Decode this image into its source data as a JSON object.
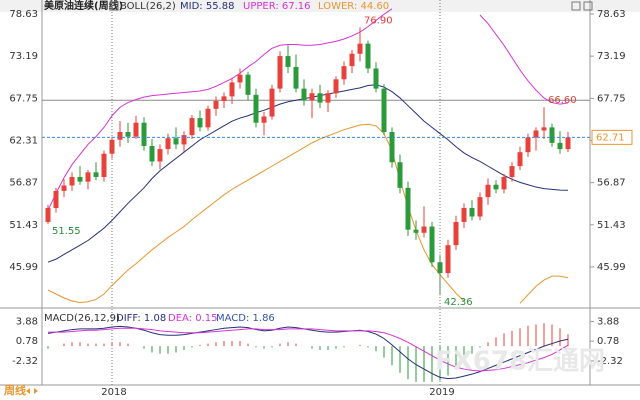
{
  "header": {
    "title": "美原油连续(周线)"
  },
  "chart_data": [
    {
      "type": "candlestick",
      "title": "BOLL(26,2)",
      "categories": [
        null,
        null,
        null,
        null,
        null,
        null,
        null,
        null,
        "2018",
        null,
        null,
        null,
        null,
        null,
        null,
        null,
        null,
        null,
        null,
        null,
        null,
        null,
        null,
        null,
        null,
        null,
        null,
        null,
        null,
        null,
        null,
        null,
        null,
        null,
        null,
        null,
        null,
        null,
        null,
        null,
        null,
        null,
        null,
        null,
        null,
        null,
        null,
        null,
        null,
        "2019",
        null,
        null,
        null,
        null,
        null,
        null,
        null,
        null,
        null,
        null,
        null,
        null,
        null,
        null,
        null,
        null
      ],
      "ohlc": [
        [
          51.8,
          54.0,
          51.55,
          53.6
        ],
        [
          53.6,
          56.2,
          53.0,
          55.8
        ],
        [
          55.8,
          57.3,
          55.0,
          56.5
        ],
        [
          56.5,
          58.2,
          55.8,
          57.6
        ],
        [
          57.6,
          59.0,
          56.6,
          57.0
        ],
        [
          57.0,
          58.5,
          56.0,
          58.2
        ],
        [
          58.2,
          59.5,
          57.2,
          57.6
        ],
        [
          57.6,
          61.0,
          57.0,
          60.6
        ],
        [
          60.6,
          62.8,
          60.0,
          62.4
        ],
        [
          62.4,
          64.8,
          61.5,
          63.4
        ],
        [
          63.4,
          64.6,
          62.0,
          62.8
        ],
        [
          62.8,
          65.5,
          62.5,
          64.6
        ],
        [
          64.6,
          65.3,
          61.0,
          61.6
        ],
        [
          61.6,
          62.5,
          59.0,
          59.6
        ],
        [
          59.6,
          61.8,
          58.6,
          61.2
        ],
        [
          61.2,
          63.2,
          60.5,
          62.6
        ],
        [
          62.6,
          64.0,
          61.2,
          61.8
        ],
        [
          61.8,
          63.5,
          60.8,
          63.0
        ],
        [
          63.0,
          65.6,
          62.5,
          65.2
        ],
        [
          65.2,
          66.2,
          63.5,
          64.0
        ],
        [
          64.0,
          66.8,
          63.6,
          66.4
        ],
        [
          66.4,
          68.0,
          65.5,
          67.4
        ],
        [
          67.4,
          68.5,
          66.5,
          68.0
        ],
        [
          68.0,
          70.4,
          67.0,
          69.8
        ],
        [
          69.8,
          71.6,
          69.0,
          70.8
        ],
        [
          70.8,
          71.2,
          67.5,
          68.2
        ],
        [
          68.2,
          69.0,
          64.0,
          64.6
        ],
        [
          64.6,
          66.0,
          63.0,
          65.4
        ],
        [
          65.4,
          69.5,
          65.0,
          69.0
        ],
        [
          69.0,
          73.8,
          68.5,
          73.2
        ],
        [
          73.2,
          74.6,
          71.0,
          71.8
        ],
        [
          71.8,
          73.4,
          68.5,
          69.0
        ],
        [
          69.0,
          70.2,
          66.8,
          67.5
        ],
        [
          67.5,
          69.0,
          65.2,
          68.4
        ],
        [
          68.4,
          69.5,
          66.5,
          67.2
        ],
        [
          67.2,
          68.8,
          66.0,
          68.4
        ],
        [
          68.4,
          70.6,
          67.8,
          70.2
        ],
        [
          70.2,
          72.5,
          69.5,
          71.9
        ],
        [
          71.9,
          74.0,
          71.0,
          73.5
        ],
        [
          73.5,
          76.9,
          72.5,
          74.8
        ],
        [
          74.8,
          75.2,
          71.0,
          71.6
        ],
        [
          71.6,
          72.4,
          68.5,
          69.0
        ],
        [
          69.0,
          69.6,
          63.0,
          63.4
        ],
        [
          63.4,
          64.0,
          58.8,
          59.5
        ],
        [
          59.5,
          60.5,
          55.5,
          56.2
        ],
        [
          56.2,
          57.0,
          50.0,
          50.8
        ],
        [
          50.8,
          52.0,
          49.5,
          50.4
        ],
        [
          50.4,
          53.8,
          49.8,
          51.2
        ],
        [
          51.2,
          51.8,
          46.0,
          46.6
        ],
        [
          46.6,
          47.6,
          42.36,
          45.2
        ],
        [
          45.2,
          49.5,
          44.6,
          48.8
        ],
        [
          48.8,
          52.6,
          48.2,
          51.8
        ],
        [
          51.8,
          54.2,
          51.0,
          53.6
        ],
        [
          53.6,
          54.6,
          52.0,
          52.5
        ],
        [
          52.5,
          55.6,
          52.0,
          55.0
        ],
        [
          55.0,
          57.4,
          54.0,
          56.6
        ],
        [
          56.6,
          57.2,
          55.5,
          56.0
        ],
        [
          56.0,
          58.0,
          55.5,
          57.6
        ],
        [
          57.6,
          59.5,
          57.0,
          59.0
        ],
        [
          59.0,
          61.5,
          58.5,
          60.8
        ],
        [
          60.8,
          63.2,
          60.2,
          62.7
        ],
        [
          62.7,
          64.0,
          61.0,
          63.6
        ],
        [
          63.6,
          66.6,
          62.5,
          64.0
        ],
        [
          64.0,
          64.5,
          61.5,
          62.0
        ],
        [
          62.0,
          63.5,
          60.6,
          61.2
        ],
        [
          61.2,
          63.4,
          60.8,
          62.71
        ]
      ],
      "up_color": "#e8403a",
      "down_color": "#2a9a3a",
      "series": [
        {
          "name": "MID",
          "legend": "MID: 55.88",
          "color": "#27307a",
          "values": [
            46.6,
            47.0,
            47.6,
            48.2,
            48.8,
            49.4,
            50.2,
            51.0,
            52.0,
            53.1,
            54.2,
            55.2,
            56.2,
            57.4,
            58.4,
            59.2,
            60.0,
            60.8,
            61.6,
            62.4,
            63.0,
            63.6,
            64.2,
            64.8,
            65.2,
            65.5,
            65.9,
            66.2,
            66.6,
            67.0,
            67.3,
            67.5,
            67.7,
            67.9,
            68.1,
            68.3,
            68.5,
            68.7,
            68.9,
            69.1,
            69.4,
            69.5,
            69.2,
            68.6,
            67.8,
            66.8,
            65.8,
            64.8,
            64.0,
            63.2,
            62.4,
            61.5,
            60.7,
            60.1,
            59.6,
            59.0,
            58.4,
            57.8,
            57.3,
            56.9,
            56.6,
            56.3,
            56.1,
            56.0,
            55.9,
            55.88
          ]
        },
        {
          "name": "UPPER",
          "legend": "UPPER: 67.16",
          "color": "#d634d6",
          "values": [
            53.3,
            55.5,
            57.5,
            59.2,
            60.5,
            61.8,
            62.8,
            64.0,
            65.5,
            66.6,
            67.2,
            67.6,
            67.9,
            68.1,
            68.2,
            68.3,
            68.4,
            68.5,
            68.6,
            68.7,
            68.9,
            69.3,
            69.8,
            70.3,
            71.0,
            71.8,
            72.5,
            73.4,
            74.2,
            74.6,
            74.7,
            74.7,
            74.6,
            74.6,
            74.7,
            74.9,
            75.1,
            75.4,
            75.8,
            76.3,
            77.0,
            77.8,
            78.6,
            79.3,
            null,
            null,
            null,
            null,
            null,
            null,
            null,
            null,
            null,
            null,
            78.5,
            77.4,
            76.0,
            74.6,
            73.0,
            71.4,
            70.0,
            68.8,
            67.8,
            67.2,
            67.0,
            67.16
          ]
        },
        {
          "name": "LOWER",
          "legend": "LOWER: 44.60",
          "color": "#e8962e",
          "values": [
            43.0,
            42.5,
            42.0,
            41.6,
            41.4,
            41.5,
            41.8,
            42.5,
            43.6,
            44.6,
            45.6,
            46.4,
            47.3,
            48.2,
            49.0,
            49.8,
            50.5,
            51.2,
            52.1,
            52.9,
            53.7,
            54.5,
            55.3,
            56.0,
            56.6,
            57.2,
            57.8,
            58.4,
            59.0,
            59.6,
            60.2,
            60.8,
            61.4,
            62.0,
            62.5,
            62.9,
            63.3,
            63.7,
            64.0,
            64.3,
            64.4,
            64.2,
            63.2,
            61.0,
            57.2,
            53.8,
            50.7,
            48.2,
            46.3,
            45.0,
            43.8,
            42.6,
            41.6,
            null,
            null,
            null,
            null,
            null,
            null,
            41.3,
            42.4,
            43.5,
            44.3,
            44.8,
            44.8,
            44.6
          ]
        }
      ],
      "ylim": [
        41.08,
        79.79
      ],
      "yticks": [
        78.63,
        73.19,
        67.75,
        62.31,
        56.87,
        51.43,
        45.99
      ],
      "annotations": [
        {
          "index": 39,
          "value": 76.9,
          "label": "76.90",
          "color": "#d9403a"
        },
        {
          "index": 49,
          "value": 42.36,
          "label": "42.36",
          "color": "#2a8a3a"
        },
        {
          "index": 62,
          "value": 66.6,
          "label": "66.60",
          "color": "#d9403a"
        },
        {
          "index": 0,
          "value": 51.55,
          "label": "51.55",
          "color": "#2a8a3a"
        }
      ],
      "last_price": 62.71,
      "reference_line": 67.5
    },
    {
      "type": "macd",
      "title": "MACD(26,12,9)",
      "series": [
        {
          "name": "DIFF",
          "legend": "DIFF: 1.08",
          "color": "#27307a",
          "values": [
            2.0,
            2.2,
            2.4,
            2.6,
            2.7,
            2.7,
            2.7,
            2.8,
            3.0,
            3.1,
            3.0,
            2.8,
            2.5,
            2.1,
            1.8,
            1.7,
            1.7,
            1.8,
            2.0,
            2.2,
            2.4,
            2.6,
            2.8,
            2.9,
            3.0,
            2.9,
            2.6,
            2.4,
            2.5,
            2.8,
            3.0,
            2.9,
            2.7,
            2.5,
            2.3,
            2.2,
            2.2,
            2.3,
            2.4,
            2.5,
            2.3,
            1.9,
            1.2,
            0.2,
            -0.9,
            -2.0,
            -2.9,
            -3.6,
            -4.3,
            -4.9,
            -5.1,
            -5.0,
            -4.7,
            -4.4,
            -4.0,
            -3.5,
            -3.0,
            -2.5,
            -2.0,
            -1.5,
            -1.0,
            -0.5,
            0.0,
            0.4,
            0.8,
            1.08
          ]
        },
        {
          "name": "DEA",
          "legend": "DEA: 0.15",
          "color": "#d634d6",
          "values": [
            2.2,
            2.2,
            2.2,
            2.3,
            2.4,
            2.5,
            2.5,
            2.6,
            2.7,
            2.8,
            2.8,
            2.8,
            2.7,
            2.6,
            2.4,
            2.3,
            2.2,
            2.1,
            2.1,
            2.1,
            2.2,
            2.3,
            2.4,
            2.5,
            2.6,
            2.7,
            2.7,
            2.6,
            2.6,
            2.6,
            2.7,
            2.7,
            2.7,
            2.7,
            2.6,
            2.5,
            2.4,
            2.4,
            2.4,
            2.4,
            2.4,
            2.3,
            2.1,
            1.7,
            1.2,
            0.6,
            -0.1,
            -0.8,
            -1.5,
            -2.2,
            -2.8,
            -3.3,
            -3.6,
            -3.8,
            -3.9,
            -3.8,
            -3.7,
            -3.5,
            -3.2,
            -2.9,
            -2.6,
            -2.2,
            -1.8,
            -1.3,
            -0.6,
            0.15
          ]
        }
      ],
      "histogram": {
        "name": "MACD",
        "legend": "MACD: 1.86",
        "color": "#3553b0",
        "up_color": "#e8403a",
        "down_color": "#2a9a3a",
        "values": [
          -0.4,
          0,
          0.4,
          0.6,
          0.6,
          0.4,
          0.4,
          0.4,
          0.6,
          0.6,
          0.4,
          0,
          -0.4,
          -1.0,
          -1.2,
          -1.2,
          -1.0,
          -0.6,
          -0.2,
          0.2,
          0.4,
          0.6,
          0.8,
          0.8,
          0.8,
          0.4,
          -0.2,
          -0.4,
          -0.2,
          0.4,
          0.6,
          0.4,
          0,
          -0.4,
          -0.6,
          -0.6,
          -0.4,
          -0.2,
          0,
          0.2,
          -0.2,
          -0.8,
          -1.8,
          -3.0,
          -4.2,
          -5.2,
          -5.6,
          -5.6,
          -5.6,
          -5.4,
          -4.6,
          -3.4,
          -2.2,
          -1.2,
          -0.2,
          0.6,
          1.4,
          2.0,
          2.4,
          2.8,
          3.2,
          3.4,
          3.6,
          3.4,
          2.8,
          1.86
        ]
      },
      "ylim": [
        -6.1,
        5.2
      ],
      "yticks": [
        3.88,
        0.78,
        -2.32
      ]
    }
  ],
  "footer": {
    "period": "周线",
    "watermark": "FX678汇通网"
  }
}
